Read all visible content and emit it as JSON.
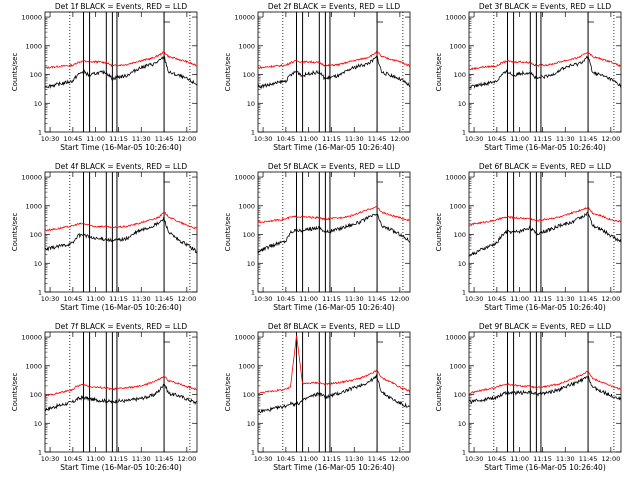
{
  "chart_data": {
    "type": "line",
    "xlabel": "Start Time (16-Mar-05 10:26:40)",
    "ylabel": "Counts/sec",
    "xlim": [
      "10:26:40",
      "12:06:40"
    ],
    "x_ticks": [
      "10:30",
      "10:45",
      "11:00",
      "11:15",
      "11:30",
      "11:45",
      "12:00"
    ],
    "y_scale": "log",
    "ylim": [
      1,
      15000
    ],
    "y_ticks": [
      "1",
      "10",
      "100",
      "1000",
      "10000"
    ],
    "dotted_markers": [
      "10:43",
      "12:02"
    ],
    "vertical_markers": [
      "10:52",
      "10:56",
      "11:07",
      "11:11",
      "11:14",
      "11:45"
    ],
    "colors": {
      "events": "#000000",
      "lld": "#ff0000"
    },
    "knot_times": [
      "10:26:40",
      "10:35",
      "10:45",
      "10:48",
      "10:52",
      "10:56",
      "11:00",
      "11:07",
      "11:11",
      "11:14",
      "11:20",
      "11:28",
      "11:33",
      "11:38",
      "11:42",
      "11:45",
      "11:48",
      "11:55",
      "12:00",
      "12:06:40"
    ],
    "panels": [
      {
        "title": "Det 1f BLACK = Events, RED = LLD",
        "events": [
          38,
          45,
          60,
          95,
          130,
          90,
          110,
          120,
          70,
          80,
          90,
          160,
          200,
          230,
          300,
          420,
          120,
          90,
          70,
          45
        ],
        "lld": [
          170,
          190,
          210,
          260,
          300,
          270,
          280,
          260,
          200,
          210,
          220,
          290,
          330,
          380,
          480,
          620,
          420,
          330,
          280,
          200
        ]
      },
      {
        "title": "Det 2f BLACK = Events, RED = LLD",
        "events": [
          38,
          45,
          60,
          95,
          130,
          90,
          110,
          120,
          70,
          80,
          90,
          160,
          200,
          230,
          300,
          420,
          120,
          90,
          70,
          40
        ],
        "lld": [
          170,
          190,
          210,
          260,
          300,
          270,
          280,
          260,
          200,
          210,
          220,
          290,
          330,
          380,
          480,
          620,
          420,
          330,
          280,
          200
        ]
      },
      {
        "title": "Det 3f BLACK = Events, RED = LLD",
        "events": [
          35,
          45,
          60,
          95,
          130,
          90,
          110,
          120,
          70,
          80,
          90,
          160,
          200,
          230,
          300,
          420,
          120,
          90,
          70,
          40
        ],
        "lld": [
          150,
          180,
          200,
          250,
          300,
          270,
          280,
          260,
          200,
          210,
          220,
          290,
          330,
          380,
          480,
          620,
          420,
          330,
          280,
          190
        ]
      },
      {
        "title": "Det 4f BLACK = Events, RED = LLD",
        "events": [
          30,
          38,
          50,
          90,
          100,
          80,
          70,
          70,
          60,
          65,
          70,
          130,
          160,
          200,
          260,
          360,
          120,
          60,
          45,
          25
        ],
        "lld": [
          140,
          160,
          200,
          230,
          240,
          210,
          190,
          190,
          170,
          180,
          190,
          240,
          290,
          340,
          420,
          600,
          420,
          270,
          210,
          160
        ]
      },
      {
        "title": "Det 5f BLACK = Events, RED = LLD",
        "events": [
          25,
          40,
          60,
          120,
          150,
          130,
          150,
          180,
          120,
          130,
          160,
          220,
          260,
          350,
          450,
          520,
          200,
          140,
          100,
          60
        ],
        "lld": [
          260,
          300,
          350,
          400,
          420,
          410,
          400,
          380,
          330,
          360,
          380,
          450,
          560,
          700,
          830,
          920,
          600,
          450,
          380,
          310
        ]
      },
      {
        "title": "Det 6f BLACK = Events, RED = LLD",
        "events": [
          18,
          30,
          50,
          90,
          130,
          120,
          130,
          180,
          100,
          120,
          150,
          220,
          250,
          350,
          450,
          550,
          200,
          140,
          90,
          55
        ],
        "lld": [
          220,
          260,
          320,
          370,
          400,
          390,
          370,
          360,
          300,
          320,
          360,
          420,
          530,
          650,
          780,
          900,
          560,
          420,
          330,
          280
        ]
      },
      {
        "title": "Det 7f BLACK = Events, RED = LLD",
        "events": [
          30,
          40,
          55,
          70,
          80,
          70,
          65,
          60,
          55,
          60,
          60,
          70,
          80,
          95,
          140,
          250,
          110,
          90,
          70,
          50
        ],
        "lld": [
          90,
          110,
          150,
          200,
          220,
          190,
          180,
          170,
          150,
          160,
          170,
          190,
          220,
          280,
          340,
          430,
          300,
          240,
          190,
          150
        ]
      },
      {
        "title": "Det 8f BLACK = Events, RED = LLD",
        "events": [
          25,
          30,
          40,
          50,
          45,
          60,
          80,
          110,
          80,
          90,
          110,
          160,
          200,
          250,
          330,
          420,
          120,
          70,
          50,
          35
        ],
        "lld": [
          110,
          130,
          150,
          180,
          12000,
          230,
          250,
          260,
          220,
          240,
          260,
          310,
          360,
          440,
          560,
          700,
          380,
          260,
          180,
          130
        ]
      },
      {
        "title": "Det 9f BLACK = Events, RED = LLD",
        "events": [
          55,
          65,
          80,
          100,
          120,
          110,
          115,
          120,
          100,
          110,
          120,
          160,
          220,
          260,
          330,
          420,
          180,
          120,
          95,
          70
        ],
        "lld": [
          110,
          140,
          180,
          210,
          230,
          210,
          200,
          190,
          170,
          180,
          200,
          250,
          330,
          420,
          520,
          680,
          360,
          260,
          200,
          150
        ]
      }
    ]
  }
}
